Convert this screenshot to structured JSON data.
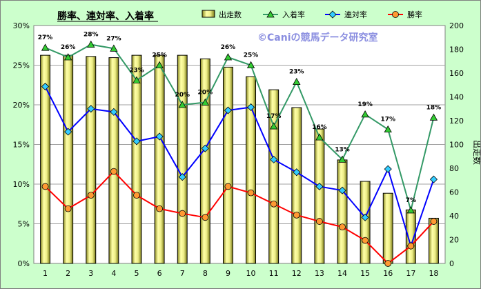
{
  "chart_data": {
    "type": "bar+line",
    "title": "勝率、連対率、入着率",
    "watermark": "©Caniの競馬データ研究室",
    "categories": [
      "1",
      "2",
      "3",
      "4",
      "5",
      "6",
      "7",
      "8",
      "9",
      "10",
      "11",
      "12",
      "13",
      "14",
      "15",
      "16",
      "17",
      "18"
    ],
    "y_left": {
      "ticks": [
        "0%",
        "5%",
        "10%",
        "15%",
        "20%",
        "25%",
        "30%"
      ],
      "range": [
        0,
        30
      ]
    },
    "y_right": {
      "label": "出走数",
      "ticks": [
        "0",
        "20",
        "40",
        "60",
        "80",
        "100",
        "120",
        "140",
        "160",
        "180",
        "200"
      ],
      "range": [
        0,
        200
      ]
    },
    "grid": true,
    "legend_position": "top",
    "series": [
      {
        "name": "出走数",
        "kind": "bar",
        "axis": "right",
        "color": "#eeee88",
        "values": [
          175,
          175,
          174,
          173,
          175,
          175,
          175,
          172,
          165,
          157,
          146,
          131,
          113,
          87,
          69,
          59,
          45,
          38
        ]
      },
      {
        "name": "入着率",
        "kind": "line",
        "axis": "left",
        "color": "#339966",
        "marker_color": "#33cc33",
        "values": [
          27.2,
          26.0,
          27.6,
          27.1,
          23.1,
          25.0,
          20.0,
          20.3,
          26.0,
          25.0,
          17.3,
          22.9,
          15.9,
          13.1,
          18.8,
          16.9,
          6.7,
          18.4
        ],
        "labels": [
          "27%",
          "26%",
          "28%",
          "27%",
          "23%",
          "25%",
          "20%",
          "20%",
          "26%",
          "25%",
          "17%",
          "23%",
          "16%",
          "13%",
          "19%",
          "17%",
          "7%",
          "18%"
        ]
      },
      {
        "name": "連対率",
        "kind": "line",
        "axis": "left",
        "color": "#0000ff",
        "marker_color": "#33ccff",
        "values": [
          22.3,
          16.6,
          19.5,
          19.1,
          15.4,
          16.0,
          10.9,
          14.5,
          19.3,
          19.7,
          13.1,
          11.5,
          9.7,
          9.2,
          5.8,
          11.9,
          2.2,
          10.6
        ]
      },
      {
        "name": "勝率",
        "kind": "line",
        "axis": "left",
        "color": "#ff0000",
        "marker_color": "#ff9933",
        "values": [
          9.7,
          6.9,
          8.6,
          11.6,
          8.6,
          6.9,
          6.3,
          5.8,
          9.7,
          8.9,
          7.5,
          6.1,
          5.3,
          4.6,
          2.9,
          0.0,
          2.2,
          5.3
        ]
      }
    ]
  }
}
